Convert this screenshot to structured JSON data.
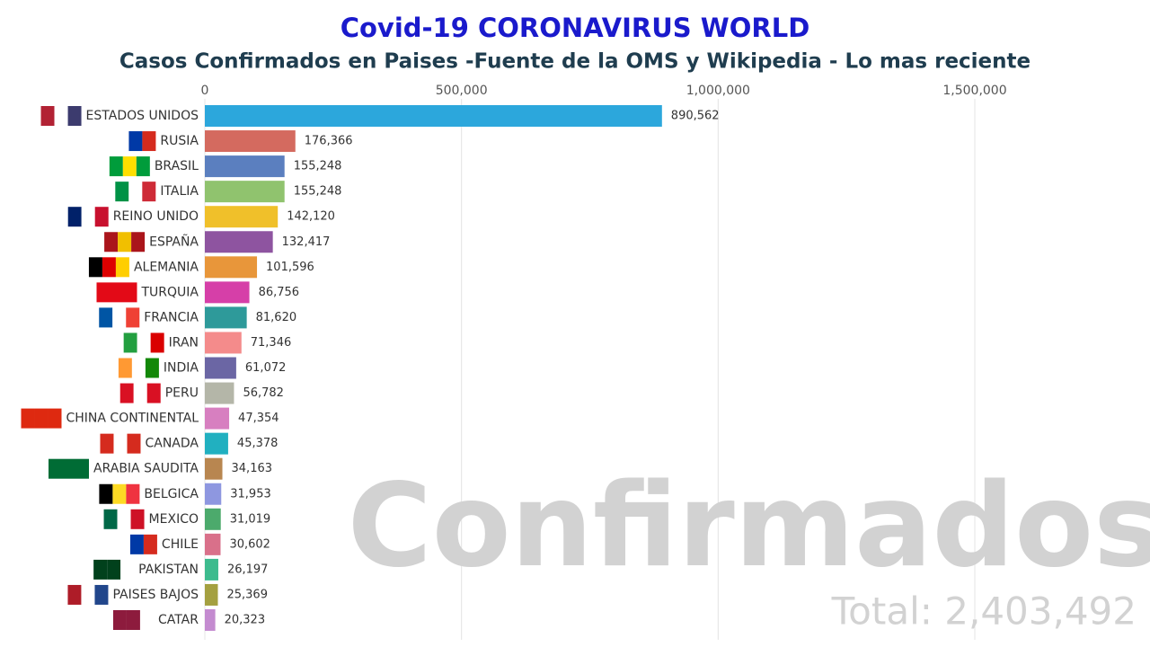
{
  "chart_data": {
    "type": "hbar",
    "title": "Covid-19 CORONAVIRUS WORLD",
    "subtitle": "Casos Confirmados en Paises -Fuente de la OMS y Wikipedia - Lo mas reciente",
    "watermark": "Confirmados",
    "total_label": "Total: 2,403,492",
    "categories": [
      "ESTADOS UNIDOS",
      "RUSIA",
      "BRASIL",
      "ITALIA",
      "REINO UNIDO",
      "ESPAÑA",
      "ALEMANIA",
      "TURQUIA",
      "FRANCIA",
      "IRAN",
      "INDIA",
      "PERU",
      "CHINA CONTINENTAL",
      "CANADA",
      "ARABIA SAUDITA",
      "BELGICA",
      "MEXICO",
      "CHILE",
      "PAKISTAN",
      "PAISES BAJOS",
      "CATAR"
    ],
    "values": [
      890562,
      176366,
      155248,
      155248,
      142120,
      132417,
      101596,
      86756,
      81620,
      71346,
      61072,
      56782,
      47354,
      45378,
      34163,
      31953,
      31019,
      30602,
      26197,
      25369,
      20323
    ],
    "value_labels": [
      "890,562",
      "176,366",
      "155,248",
      "155,248",
      "142,120",
      "132,417",
      "101,596",
      "86,756",
      "81,620",
      "71,346",
      "61,072",
      "56,782",
      "47,354",
      "45,378",
      "34,163",
      "31,953",
      "31,019",
      "30,602",
      "26,197",
      "25,369",
      "20,323"
    ],
    "colors": [
      "#2ca7dc",
      "#d46a5f",
      "#5b7fbf",
      "#90c36e",
      "#f0c02a",
      "#8e54a0",
      "#e8963a",
      "#d63fa8",
      "#2e9a9a",
      "#f48b8b",
      "#6b66a4",
      "#b4b6a8",
      "#d77fc0",
      "#21b0c0",
      "#b88650",
      "#8e97e0",
      "#4caa6c",
      "#d9708a",
      "#3dbb8e",
      "#a4a040",
      "#c48bd0"
    ],
    "xlim": [
      0,
      1500000
    ],
    "xticks": [
      0,
      {
        "value": 500000,
        "label": "500,000"
      },
      {
        "value": 1000000,
        "label": "1,000,000"
      },
      {
        "value": 1500000,
        "label": "1,500,000"
      }
    ],
    "grid": true
  }
}
